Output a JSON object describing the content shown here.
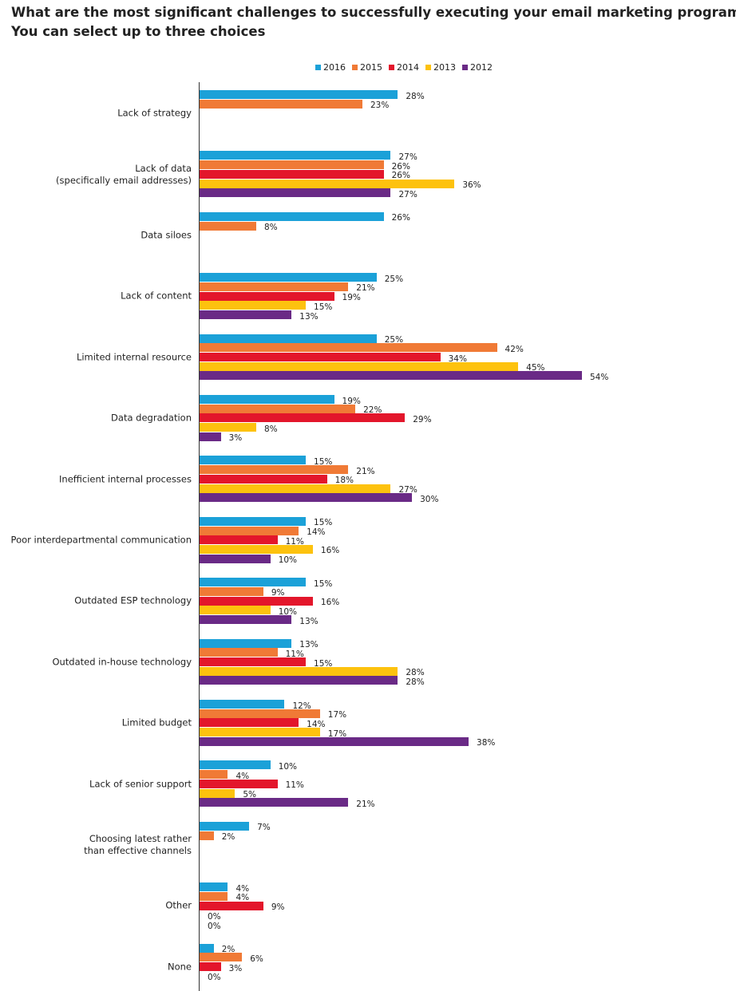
{
  "chart_data": {
    "type": "bar",
    "orientation": "horizontal",
    "title": "What are the most significant challenges to successfully executing your email marketing programmes?",
    "subtitle": "You can select up to three choices",
    "categories": [
      "Lack of strategy",
      "Lack of data\n(specifically email addresses)",
      "Data siloes",
      "Lack of content",
      "Limited internal resource",
      "Data degradation",
      "Inefficient internal processes",
      "Poor interdepartmental communication",
      "Outdated ESP technology",
      "Outdated in-house technology",
      "Limited budget",
      "Lack of senior support",
      "Choosing latest rather\nthan effective channels",
      "Other",
      "None"
    ],
    "series": [
      {
        "name": "2016",
        "color": "#1ba1d8",
        "values": [
          28,
          27,
          26,
          25,
          25,
          19,
          15,
          15,
          15,
          13,
          12,
          10,
          7,
          4,
          2
        ],
        "value_labels": [
          "28%",
          "27%",
          "26%",
          "25%",
          "25%",
          "19%",
          "15%",
          "15%",
          "15%",
          "13%",
          "12%",
          "10%",
          "7%",
          "4%",
          "2%"
        ]
      },
      {
        "name": "2015",
        "color": "#f07a36",
        "values": [
          23,
          26,
          8,
          21,
          42,
          22,
          21,
          14,
          9,
          11,
          17,
          4,
          2,
          4,
          6
        ],
        "value_labels": [
          "23%",
          "26%",
          "8%",
          "21%",
          "42%",
          "22%",
          "21%",
          "14%",
          "9%",
          "11%",
          "17%",
          "4%",
          "2%",
          "4%",
          "6%"
        ]
      },
      {
        "name": "2014",
        "color": "#e3162b",
        "values": [
          null,
          26,
          null,
          19,
          34,
          29,
          18,
          11,
          16,
          15,
          14,
          11,
          null,
          9,
          3
        ],
        "value_labels": [
          null,
          "26%",
          null,
          "19%",
          "34%",
          "29%",
          "18%",
          "11%",
          "16%",
          "15%",
          "14%",
          "11%",
          null,
          "9%",
          "3%"
        ]
      },
      {
        "name": "2013",
        "color": "#fdc20e",
        "values": [
          null,
          36,
          null,
          15,
          45,
          8,
          27,
          16,
          10,
          28,
          17,
          5,
          null,
          0,
          0
        ],
        "value_labels": [
          null,
          "36%",
          null,
          "15%",
          "45%",
          "8%",
          "27%",
          "16%",
          "10%",
          "28%",
          "17%",
          "5%",
          null,
          "0%",
          "0%"
        ]
      },
      {
        "name": "2012",
        "color": "#6a2a86",
        "values": [
          null,
          27,
          null,
          13,
          54,
          3,
          30,
          10,
          13,
          28,
          38,
          21,
          null,
          0,
          null
        ],
        "value_labels": [
          null,
          "27%",
          null,
          "13%",
          "54%",
          "3%",
          "30%",
          "10%",
          "13%",
          "28%",
          "38%",
          "21%",
          null,
          "0%",
          null
        ]
      }
    ]
  }
}
